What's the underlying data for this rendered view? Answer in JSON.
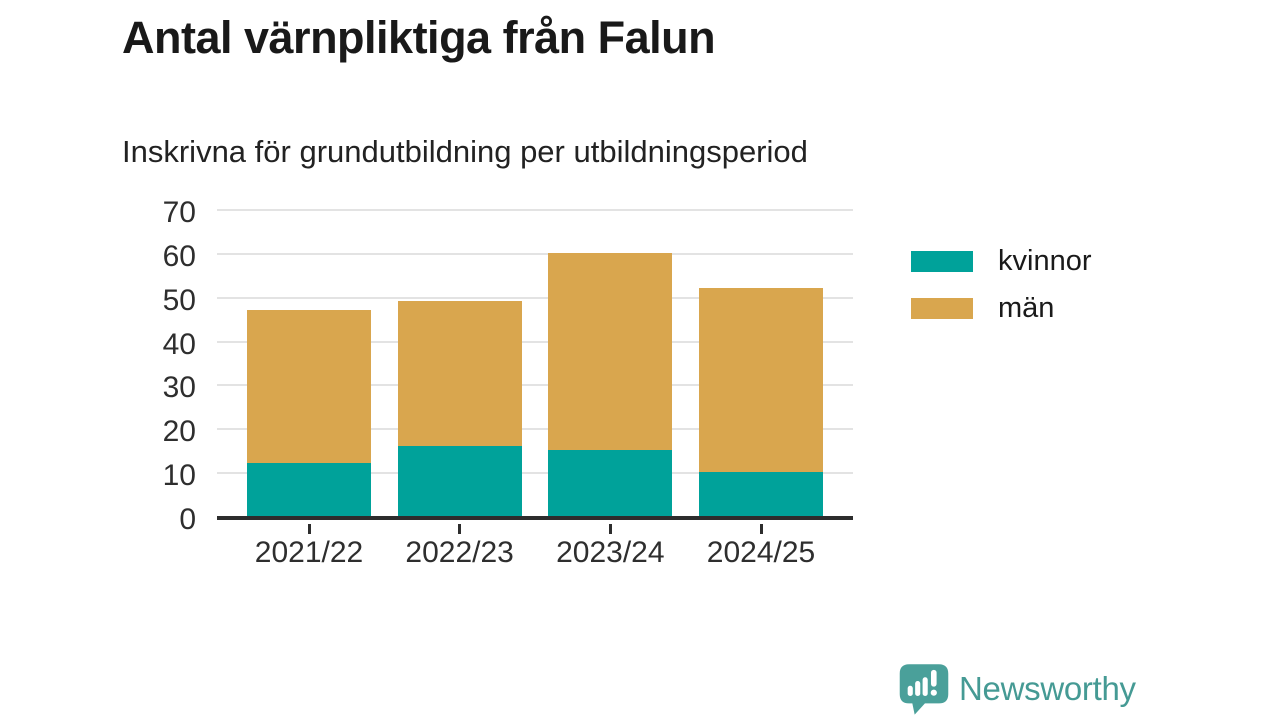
{
  "title": "Antal värnpliktiga från Falun",
  "subtitle": "Inskrivna för grundutbildning per utbildningsperiod",
  "chart_data": {
    "type": "bar",
    "stacked": true,
    "categories": [
      "2021/22",
      "2022/23",
      "2023/24",
      "2024/25"
    ],
    "series": [
      {
        "name": "kvinnor",
        "color": "#00a29a",
        "values": [
          12,
          16,
          15,
          10
        ]
      },
      {
        "name": "män",
        "color": "#d9a64e",
        "values": [
          35,
          33,
          45,
          42
        ]
      }
    ],
    "stack_totals": [
      47,
      49,
      60,
      52
    ],
    "title": "Antal värnpliktiga från Falun",
    "subtitle": "Inskrivna för grundutbildning per utbildningsperiod",
    "xlabel": "",
    "ylabel": "",
    "ylim": [
      0,
      70
    ],
    "yticks": [
      0,
      10,
      20,
      30,
      40,
      50,
      60,
      70
    ],
    "grid": true,
    "legend_position": "right"
  },
  "legend": {
    "items": [
      {
        "label": "kvinnor",
        "color": "#00a29a"
      },
      {
        "label": "män",
        "color": "#d9a64e"
      }
    ]
  },
  "footer": {
    "brand": "Newsworthy"
  },
  "colors": {
    "axis": "#2d2d2d",
    "grid": "#e3e3e3",
    "brand": "#459a94"
  }
}
